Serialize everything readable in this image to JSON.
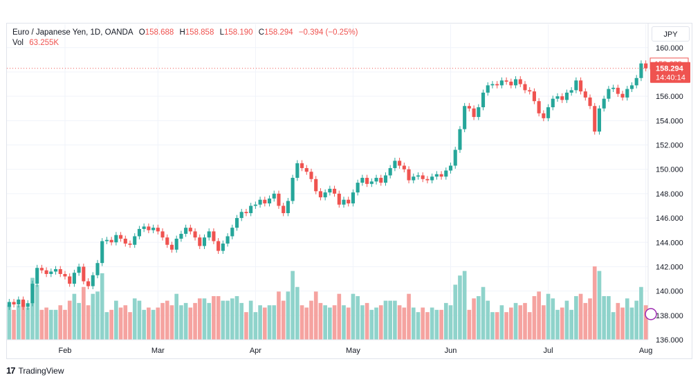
{
  "legend": {
    "symbol": "Euro / Japanese Yen, 1D, OANDA",
    "open_label": "O",
    "open": "158.688",
    "high_label": "H",
    "high": "158.858",
    "low_label": "L",
    "low": "158.190",
    "close_label": "C",
    "close": "158.294",
    "change": "−0.394 (−0.25%)",
    "volume_label": "Vol",
    "volume": "63.255K"
  },
  "currency_button": "JPY",
  "price_tags": {
    "prev_close": "158.688",
    "last_price": "158.294",
    "countdown": "14:40:14"
  },
  "footer": {
    "logo_mark": "17",
    "brand": "TradingView"
  },
  "colors": {
    "up": "#26a69a",
    "down": "#ef5350",
    "up_volume": "#8fd3cb",
    "down_volume": "#f5a3a0",
    "grid": "#f0f3fa"
  },
  "chart_data": {
    "type": "candlestick",
    "y_ticks": [
      "136.000",
      "138.000",
      "140.000",
      "142.000",
      "144.000",
      "146.000",
      "148.000",
      "150.000",
      "152.000",
      "154.000",
      "156.000",
      "158.000",
      "160.000"
    ],
    "ylim": [
      136,
      160.5
    ],
    "x_ticks": [
      "Feb",
      "Mar",
      "Apr",
      "May",
      "Jun",
      "Jul",
      "Aug"
    ],
    "x_tick_index": [
      12,
      32,
      53,
      74,
      95,
      116,
      137
    ],
    "close": [
      139.1,
      138.9,
      139.3,
      138.7,
      139.0,
      140.6,
      141.9,
      141.7,
      141.4,
      141.6,
      141.8,
      141.4,
      141.2,
      140.6,
      141.5,
      142.0,
      140.8,
      140.4,
      141.3,
      142.3,
      144.1,
      144.2,
      144.0,
      144.6,
      144.3,
      143.9,
      143.8,
      144.5,
      145.1,
      145.3,
      145.0,
      145.2,
      144.9,
      144.4,
      143.8,
      143.4,
      144.3,
      144.7,
      145.2,
      144.9,
      144.4,
      143.7,
      144.4,
      144.9,
      144.1,
      143.3,
      143.9,
      144.5,
      145.2,
      146.0,
      146.5,
      146.4,
      147.0,
      147.1,
      147.5,
      147.2,
      147.6,
      148.0,
      147.0,
      146.4,
      147.4,
      149.3,
      150.5,
      150.1,
      149.8,
      149.2,
      148.2,
      147.7,
      148.1,
      148.4,
      148.0,
      147.1,
      147.5,
      147.2,
      148.1,
      148.9,
      149.3,
      148.8,
      149.0,
      149.3,
      148.9,
      149.5,
      150.1,
      150.7,
      150.3,
      150.0,
      149.1,
      149.4,
      149.5,
      149.2,
      149.1,
      149.4,
      149.6,
      149.4,
      149.9,
      150.3,
      151.6,
      153.3,
      155.2,
      155.0,
      154.3,
      155.1,
      156.3,
      156.9,
      157.0,
      156.9,
      157.3,
      157.2,
      156.9,
      157.4,
      157.0,
      156.5,
      156.4,
      155.6,
      154.6,
      154.2,
      155.1,
      155.8,
      156.0,
      155.7,
      156.3,
      156.5,
      157.3,
      156.4,
      155.9,
      155.2,
      153.1,
      155.0,
      155.8,
      156.6,
      156.7,
      156.2,
      155.9,
      156.6,
      156.9,
      157.5,
      158.7,
      158.3
    ],
    "volume_up": true
  }
}
